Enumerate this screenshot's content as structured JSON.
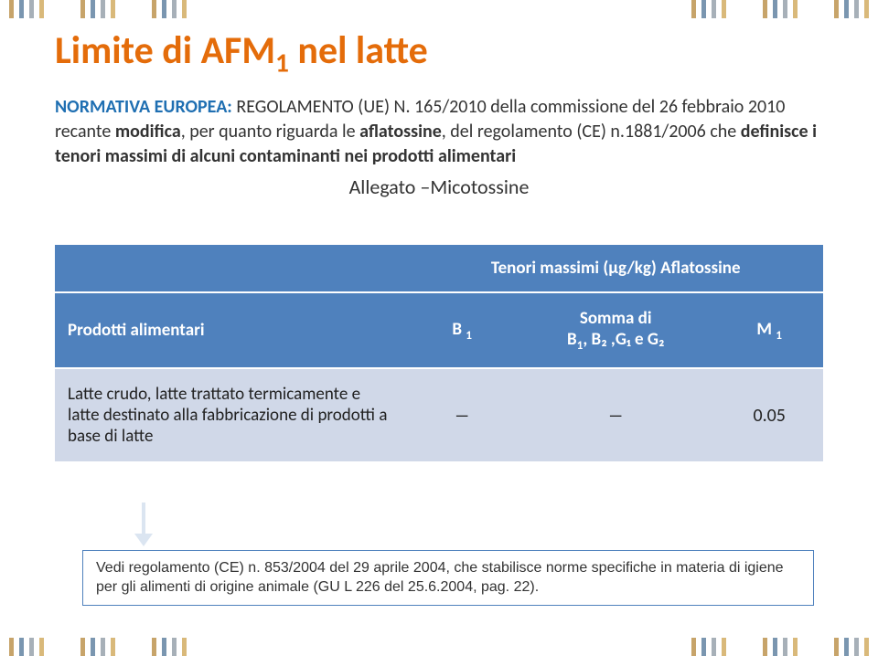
{
  "stripes": {
    "groups_per_side": 3,
    "stripes_per_group": 4,
    "colors": [
      "#c7a46a",
      "#7a96b0",
      "#a7b0b8",
      "#d9b97a"
    ]
  },
  "title": {
    "prefix": "Limite di AFM",
    "sub": "1",
    "suffix": " nel latte",
    "color": "#e46c0a"
  },
  "subtitle": {
    "normativa_label": "NORMATIVA EUROPEA: ",
    "reg_text": "REGOLAMENTO (UE) N. 165/2010",
    "line1_rest": " della commissione del 26 febbraio 2010 recante ",
    "bold_modifica": "modifica",
    "line1_rest2": ", per quanto riguarda le ",
    "bold_afla": "aflatossine",
    "line1_rest3": ", del regolamento (CE) n.1881/2006 che ",
    "bold_definisce": "definisce i tenori massimi di alcuni contaminanti nei prodotti alimentari"
  },
  "allegato": "Allegato –Micotossine",
  "table": {
    "header1": "Tenori massimi (μg/kg) Aflatossine",
    "col_prodotti": "Prodotti alimentari",
    "col_b1": "B",
    "col_b1_sub": "1",
    "col_somma_line1": "Somma di",
    "col_somma_line2_pre": "B",
    "col_somma_line2": ", B₂ ,G₁ e G₂",
    "col_m1": "M",
    "col_m1_sub": "1",
    "row1_label": "Latte crudo, latte trattato termicamente e latte destinato alla fabbricazione di prodotti a base di latte",
    "row1_b1": "―",
    "row1_somma": "―",
    "row1_m1": "0.05",
    "header_bg": "#4f81bd",
    "row_bg": "#d0d8e8"
  },
  "footnote": {
    "text": "Vedi regolamento (CE) n. 853/2004 del 29 aprile 2004, che stabilisce norme specifiche in materia di igiene per gli alimenti di origine animale (GU L 226 del 25.6.2004, pag. 22)."
  }
}
